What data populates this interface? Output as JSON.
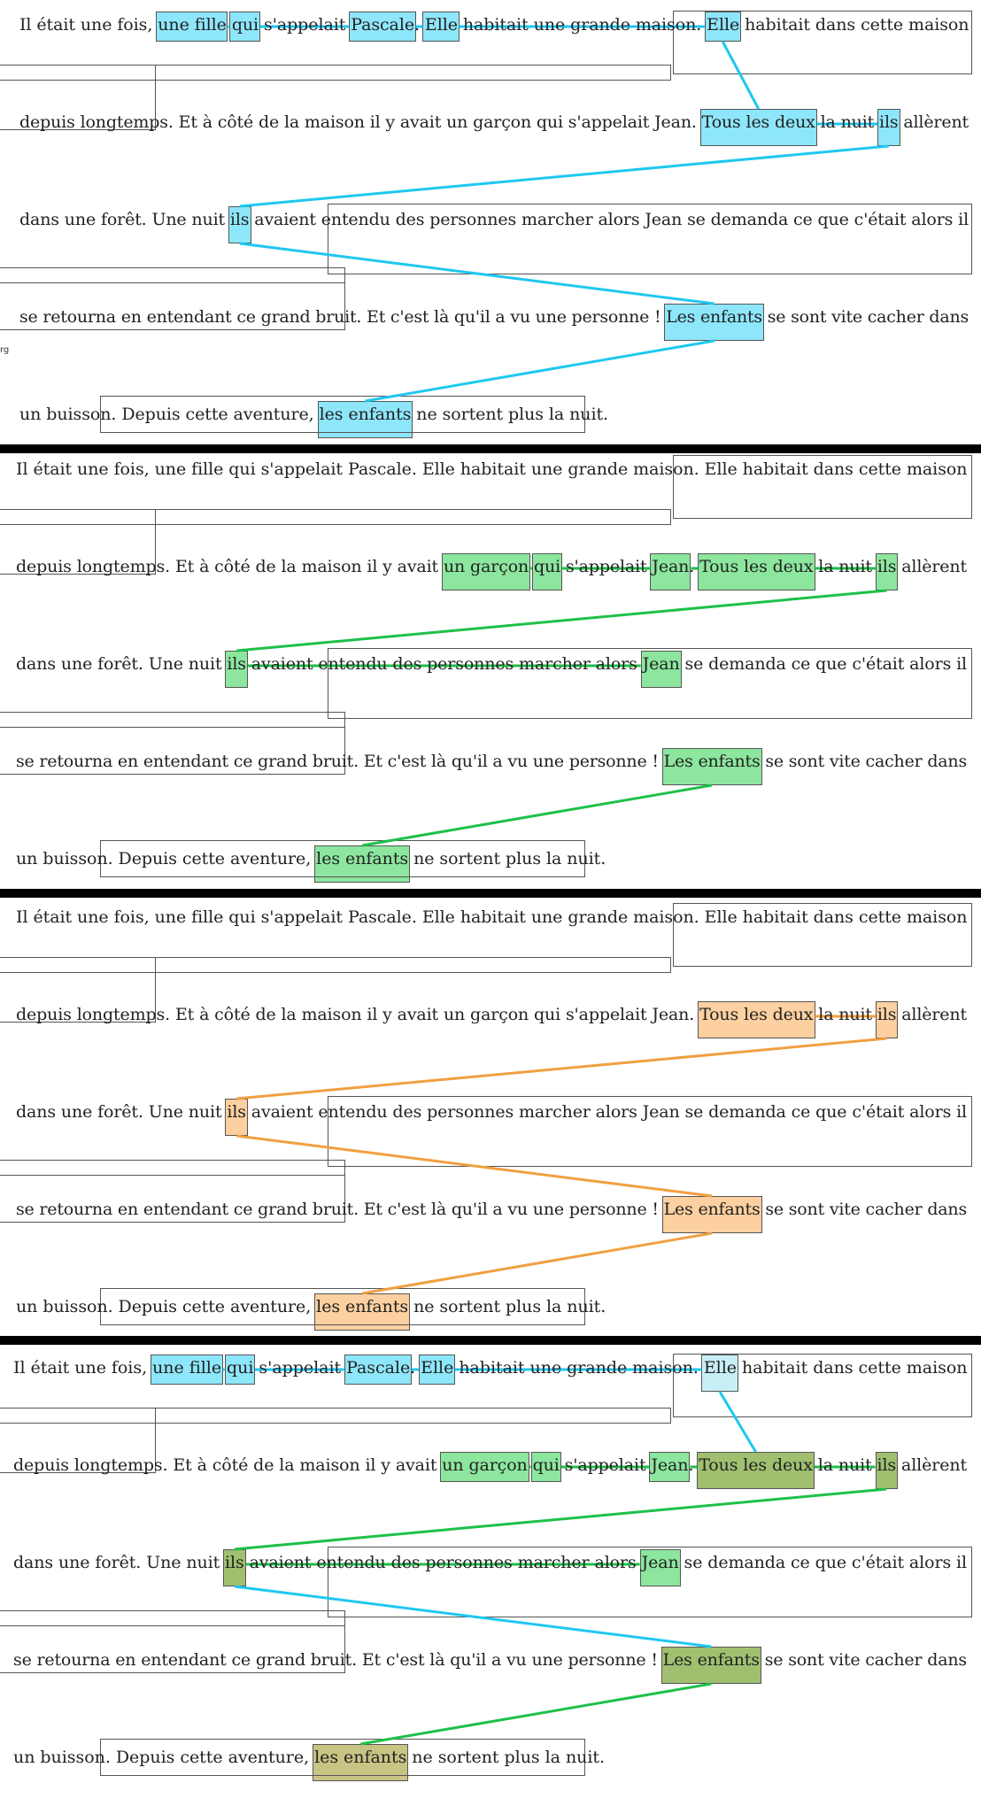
{
  "lines": [
    "Il était une fois, une fille qui s'appelait Pascale. Elle habitait une grande maison. Elle habitait dans cette maison",
    "depuis longtemps. Et à côté de la maison il y avait un garçon qui s'appelait Jean. Tous les deux la nuit ils allèrent",
    "dans une forêt. Une nuit ils avaient entendu des personnes marcher alors Jean se demanda ce que c'était alors il",
    "se retourna en entendant ce grand bruit. Et c'est là qu'il a vu une personne ! Les enfants se sont vite cacher dans",
    "un buisson. Depuis cette aventure, les enfants ne sortent plus la nuit."
  ],
  "chain_colors": {
    "blue": "#1ec8f0",
    "blue_fill": "#8ee6fa",
    "green": "#1ec04a",
    "green_fill": "#8ce69e",
    "orange": "#f0a040",
    "orange_fill": "#fcd0a0",
    "olive_fill": "#a0c070",
    "khaki_fill": "#c8c484",
    "pale_blue_fill": "#c8eef6",
    "pale_green_fill": "#cfeed6"
  },
  "left_edge_marks": [
    "rg"
  ]
}
